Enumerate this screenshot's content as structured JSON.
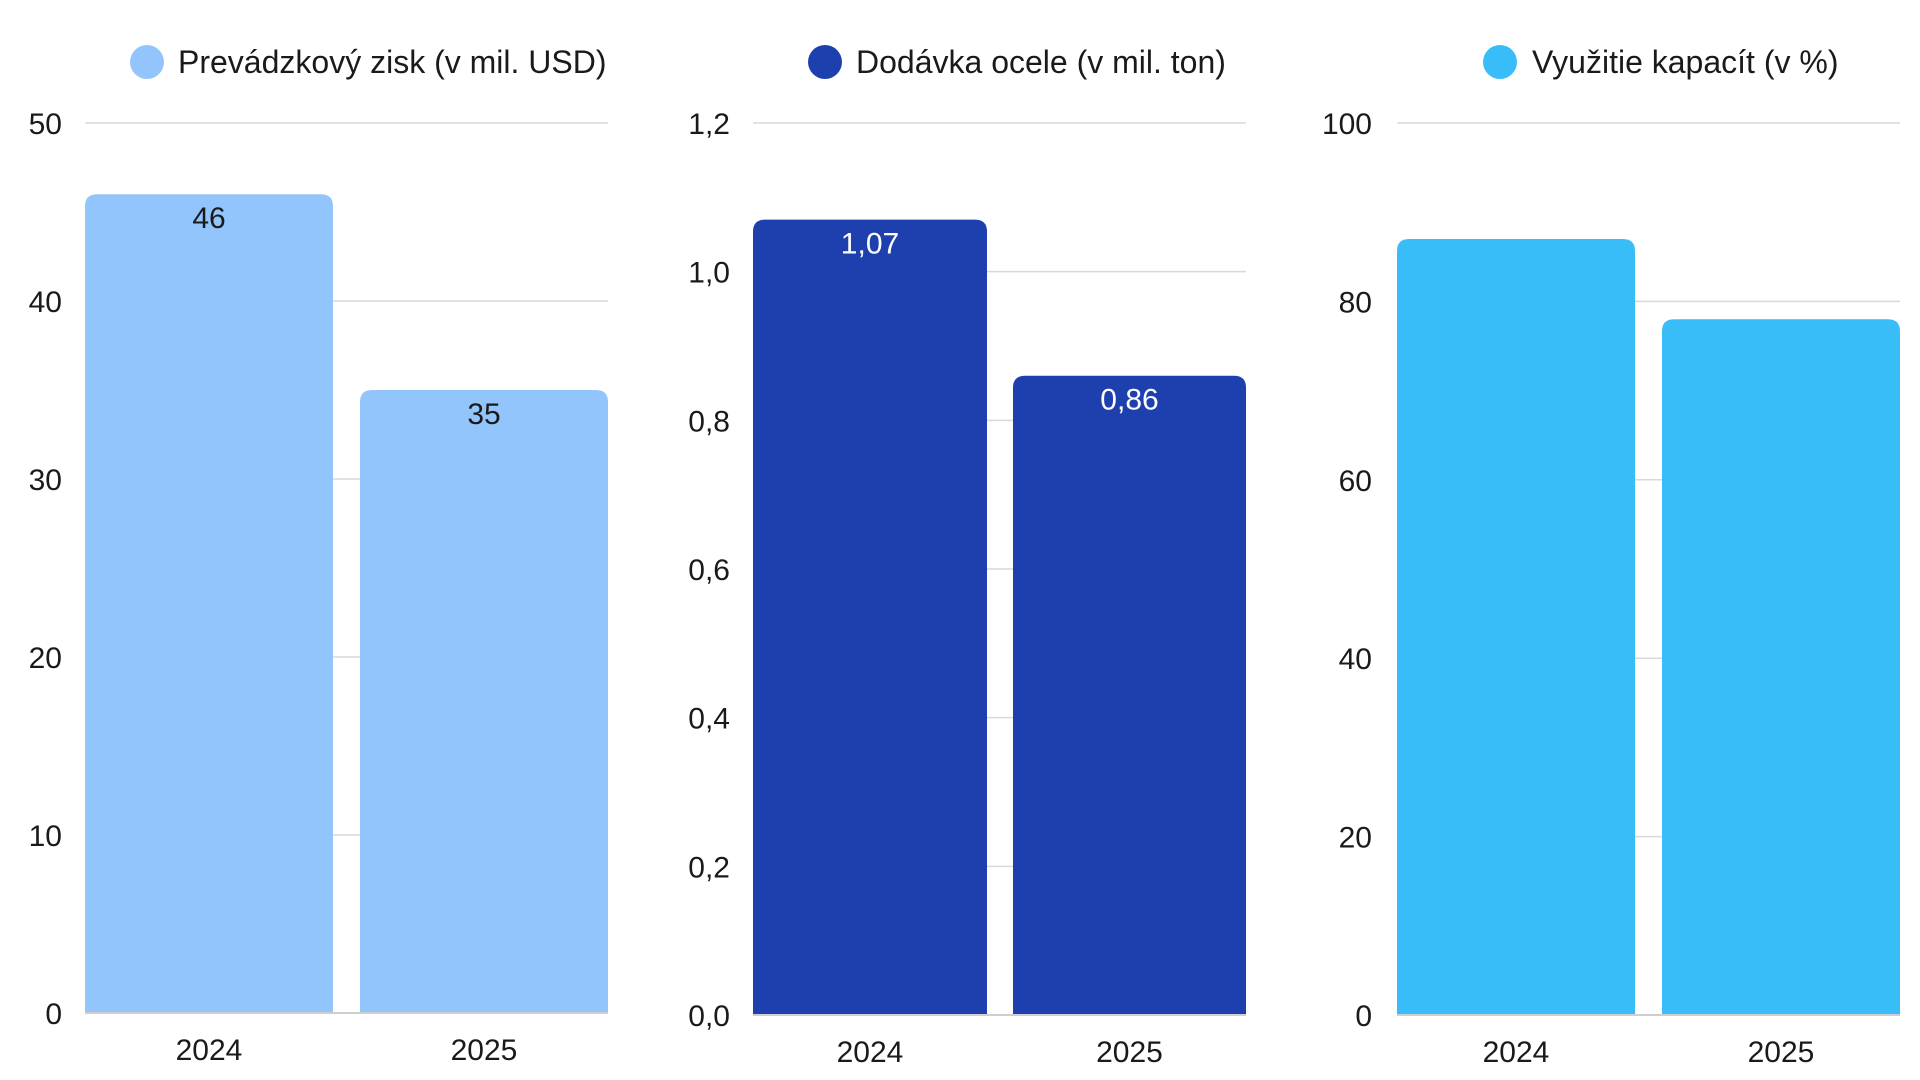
{
  "chart_data": [
    {
      "type": "bar",
      "title": "Prevádzkový zisk (v mil. USD)",
      "legend": "Prevádzkový zisk (v mil. USD)",
      "color": "#93c5fd",
      "label_color": "#1a1a1a",
      "categories": [
        "2024",
        "2025"
      ],
      "values": [
        46,
        35
      ],
      "value_labels": [
        "46",
        "35"
      ],
      "ylim": [
        0,
        50
      ],
      "yticks": [
        0,
        10,
        20,
        30,
        40,
        50
      ],
      "ytick_labels": [
        "0",
        "10",
        "20",
        "30",
        "40",
        "50"
      ],
      "grid": true,
      "legend_position": "top"
    },
    {
      "type": "bar",
      "title": "Dodávka ocele (v mil. ton)",
      "legend": "Dodávka ocele (v mil. ton)",
      "color": "#1e40af",
      "label_color": "#ffffff",
      "categories": [
        "2024",
        "2025"
      ],
      "values": [
        1.07,
        0.86
      ],
      "value_labels": [
        "1,07",
        "0,86"
      ],
      "ylim": [
        0,
        1.2
      ],
      "yticks": [
        0,
        0.2,
        0.4,
        0.6,
        0.8,
        1.0,
        1.2
      ],
      "ytick_labels": [
        "0,0",
        "0,2",
        "0,4",
        "0,6",
        "0,8",
        "1,0",
        "1,2"
      ],
      "grid": true,
      "legend_position": "top"
    },
    {
      "type": "bar",
      "title": "Využitie kapacít (v %)",
      "legend": "Využitie kapacít (v %)",
      "color": "#38bdf8",
      "label_color": "#1a1a1a",
      "categories": [
        "2024",
        "2025"
      ],
      "values": [
        87,
        78
      ],
      "value_labels": [],
      "ylim": [
        0,
        100
      ],
      "yticks": [
        0,
        20,
        40,
        60,
        80,
        100
      ],
      "ytick_labels": [
        "0",
        "20",
        "40",
        "60",
        "80",
        "100"
      ],
      "grid": true,
      "legend_position": "top"
    }
  ]
}
